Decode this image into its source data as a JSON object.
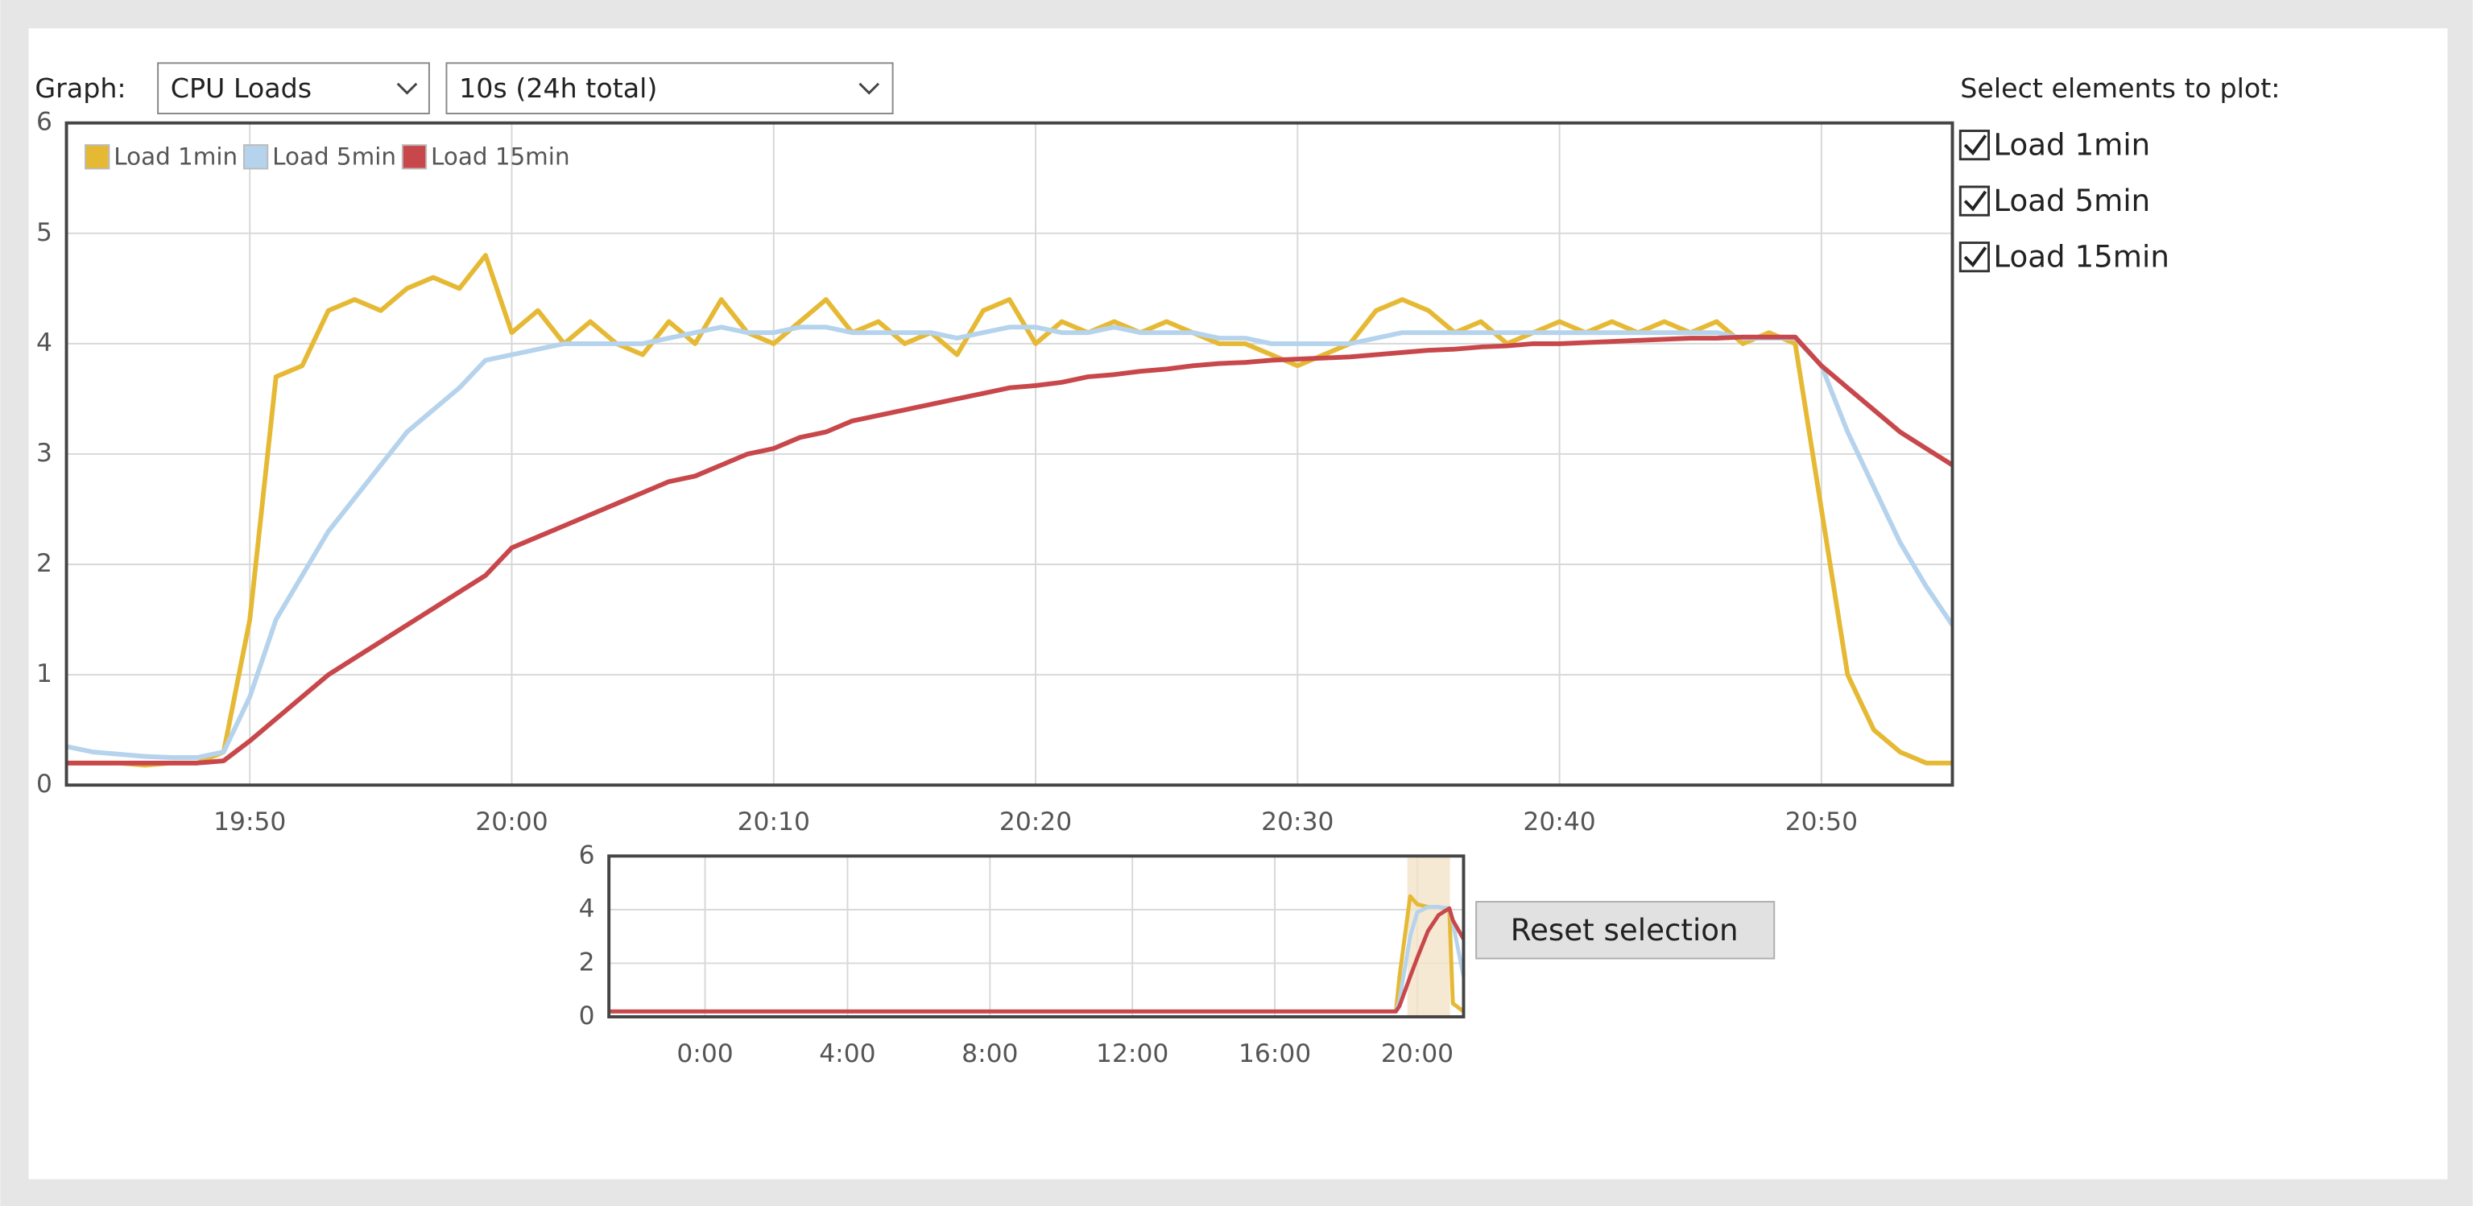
{
  "controls": {
    "graph_label": "Graph:",
    "graph_select": "CPU Loads",
    "interval_select": "10s (24h total)",
    "plot_heading": "Select elements to plot:",
    "checkboxes": [
      "Load 1min",
      "Load 5min",
      "Load 15min"
    ],
    "reset_button": "Reset selection"
  },
  "chart_data": [
    {
      "type": "line",
      "x": [
        "19:43",
        "19:44",
        "19:45",
        "19:46",
        "19:47",
        "19:48",
        "19:49",
        "19:50",
        "19:51",
        "19:52",
        "19:53",
        "19:54",
        "19:55",
        "19:56",
        "19:57",
        "19:58",
        "19:59",
        "20:00",
        "20:01",
        "20:02",
        "20:03",
        "20:04",
        "20:05",
        "20:06",
        "20:07",
        "20:08",
        "20:09",
        "20:10",
        "20:11",
        "20:12",
        "20:13",
        "20:14",
        "20:15",
        "20:16",
        "20:17",
        "20:18",
        "20:19",
        "20:20",
        "20:21",
        "20:22",
        "20:23",
        "20:24",
        "20:25",
        "20:26",
        "20:27",
        "20:28",
        "20:29",
        "20:30",
        "20:31",
        "20:32",
        "20:33",
        "20:34",
        "20:35",
        "20:36",
        "20:37",
        "20:38",
        "20:39",
        "20:40",
        "20:41",
        "20:42",
        "20:43",
        "20:44",
        "20:45",
        "20:46",
        "20:47",
        "20:48",
        "20:49",
        "20:50",
        "20:51",
        "20:52",
        "20:53",
        "20:54",
        "20:55"
      ],
      "series": [
        {
          "name": "Load 1min",
          "color": "#e6b935",
          "values": [
            0.2,
            0.2,
            0.2,
            0.18,
            0.2,
            0.2,
            0.3,
            1.5,
            3.7,
            3.8,
            4.3,
            4.4,
            4.3,
            4.5,
            4.6,
            4.5,
            4.8,
            4.1,
            4.3,
            4.0,
            4.2,
            4.0,
            3.9,
            4.2,
            4.0,
            4.4,
            4.1,
            4.0,
            4.2,
            4.4,
            4.1,
            4.2,
            4.0,
            4.1,
            3.9,
            4.3,
            4.4,
            4.0,
            4.2,
            4.1,
            4.2,
            4.1,
            4.2,
            4.1,
            4.0,
            4.0,
            3.9,
            3.8,
            3.9,
            4.0,
            4.3,
            4.4,
            4.3,
            4.1,
            4.2,
            4.0,
            4.1,
            4.2,
            4.1,
            4.2,
            4.1,
            4.2,
            4.1,
            4.2,
            4.0,
            4.1,
            4.0,
            2.5,
            1.0,
            0.5,
            0.3,
            0.2,
            0.2
          ]
        },
        {
          "name": "Load 5min",
          "color": "#b5d3ec",
          "values": [
            0.35,
            0.3,
            0.28,
            0.26,
            0.25,
            0.25,
            0.3,
            0.8,
            1.5,
            1.9,
            2.3,
            2.6,
            2.9,
            3.2,
            3.4,
            3.6,
            3.85,
            3.9,
            3.95,
            4.0,
            4.0,
            4.0,
            4.0,
            4.05,
            4.1,
            4.15,
            4.1,
            4.1,
            4.15,
            4.15,
            4.1,
            4.1,
            4.1,
            4.1,
            4.05,
            4.1,
            4.15,
            4.15,
            4.1,
            4.1,
            4.15,
            4.1,
            4.1,
            4.1,
            4.05,
            4.05,
            4.0,
            4.0,
            4.0,
            4.0,
            4.05,
            4.1,
            4.1,
            4.1,
            4.1,
            4.1,
            4.1,
            4.1,
            4.1,
            4.1,
            4.1,
            4.1,
            4.1,
            4.1,
            4.05,
            4.05,
            4.05,
            3.8,
            3.2,
            2.7,
            2.2,
            1.8,
            1.45
          ]
        },
        {
          "name": "Load 15min",
          "color": "#c8474b",
          "values": [
            0.2,
            0.2,
            0.2,
            0.2,
            0.2,
            0.2,
            0.22,
            0.4,
            0.6,
            0.8,
            1.0,
            1.15,
            1.3,
            1.45,
            1.6,
            1.75,
            1.9,
            2.15,
            2.25,
            2.35,
            2.45,
            2.55,
            2.65,
            2.75,
            2.8,
            2.9,
            3.0,
            3.05,
            3.15,
            3.2,
            3.3,
            3.35,
            3.4,
            3.45,
            3.5,
            3.55,
            3.6,
            3.62,
            3.65,
            3.7,
            3.72,
            3.75,
            3.77,
            3.8,
            3.82,
            3.83,
            3.85,
            3.86,
            3.87,
            3.88,
            3.9,
            3.92,
            3.94,
            3.95,
            3.97,
            3.98,
            4.0,
            4.0,
            4.01,
            4.02,
            4.03,
            4.04,
            4.05,
            4.05,
            4.06,
            4.06,
            4.06,
            3.8,
            3.6,
            3.4,
            3.2,
            3.05,
            2.9
          ]
        }
      ],
      "xlim": [
        "19:43",
        "20:55"
      ],
      "xticks": [
        "19:50",
        "20:00",
        "20:10",
        "20:20",
        "20:30",
        "20:40",
        "20:50"
      ],
      "ylim": [
        0,
        6
      ],
      "yticks": [
        0,
        1,
        2,
        3,
        4,
        5,
        6
      ],
      "grid": true,
      "legend": "top-left"
    },
    {
      "type": "line",
      "x": [
        -2.7,
        19.4,
        19.5,
        19.8,
        20.0,
        20.3,
        20.6,
        20.9,
        21.0,
        21.3
      ],
      "series": [
        {
          "name": "Load 1min",
          "color": "#e6b935",
          "values": [
            0.2,
            0.2,
            1.5,
            4.5,
            4.2,
            4.1,
            4.1,
            4.0,
            0.5,
            0.2
          ]
        },
        {
          "name": "Load 5min",
          "color": "#b5d3ec",
          "values": [
            0.2,
            0.2,
            0.6,
            3.0,
            3.9,
            4.1,
            4.1,
            4.05,
            3.5,
            1.5
          ]
        },
        {
          "name": "Load 15min",
          "color": "#c8474b",
          "values": [
            0.2,
            0.2,
            0.4,
            1.5,
            2.2,
            3.2,
            3.8,
            4.05,
            3.6,
            2.9
          ]
        }
      ],
      "selection": [
        19.72,
        20.92
      ],
      "xlim": [
        -2.7,
        21.3
      ],
      "xticks": [
        {
          "value": 0,
          "label": "0:00"
        },
        {
          "value": 4,
          "label": "4:00"
        },
        {
          "value": 8,
          "label": "8:00"
        },
        {
          "value": 12,
          "label": "12:00"
        },
        {
          "value": 16,
          "label": "16:00"
        },
        {
          "value": 20,
          "label": "20:00"
        }
      ],
      "ylim": [
        0,
        6
      ],
      "yticks": [
        0,
        2,
        4,
        6
      ],
      "grid": true
    }
  ]
}
